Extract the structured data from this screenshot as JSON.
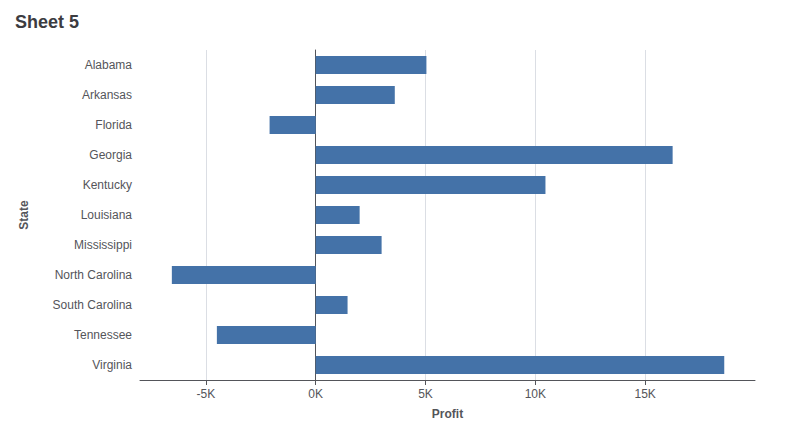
{
  "chart_data": {
    "type": "bar",
    "title": "Sheet 5",
    "orientation": "horizontal",
    "categories": [
      "Alabama",
      "Arkansas",
      "Florida",
      "Georgia",
      "Kentucky",
      "Louisiana",
      "Mississippi",
      "North Carolina",
      "South Carolina",
      "Tennessee",
      "Virginia"
    ],
    "values": [
      5040,
      3600,
      -2100,
      16250,
      10460,
      2000,
      3000,
      -6550,
      1450,
      -4500,
      18600
    ],
    "color": "#4472a8",
    "xlabel": "Profit",
    "ylabel": "State",
    "xlim": [
      -8000,
      20000
    ],
    "xticks": [
      {
        "value": -5000,
        "label": "-5K"
      },
      {
        "value": 0,
        "label": "0K"
      },
      {
        "value": 5000,
        "label": "5K"
      },
      {
        "value": 10000,
        "label": "10K"
      },
      {
        "value": 15000,
        "label": "15K"
      }
    ],
    "grid": true
  }
}
